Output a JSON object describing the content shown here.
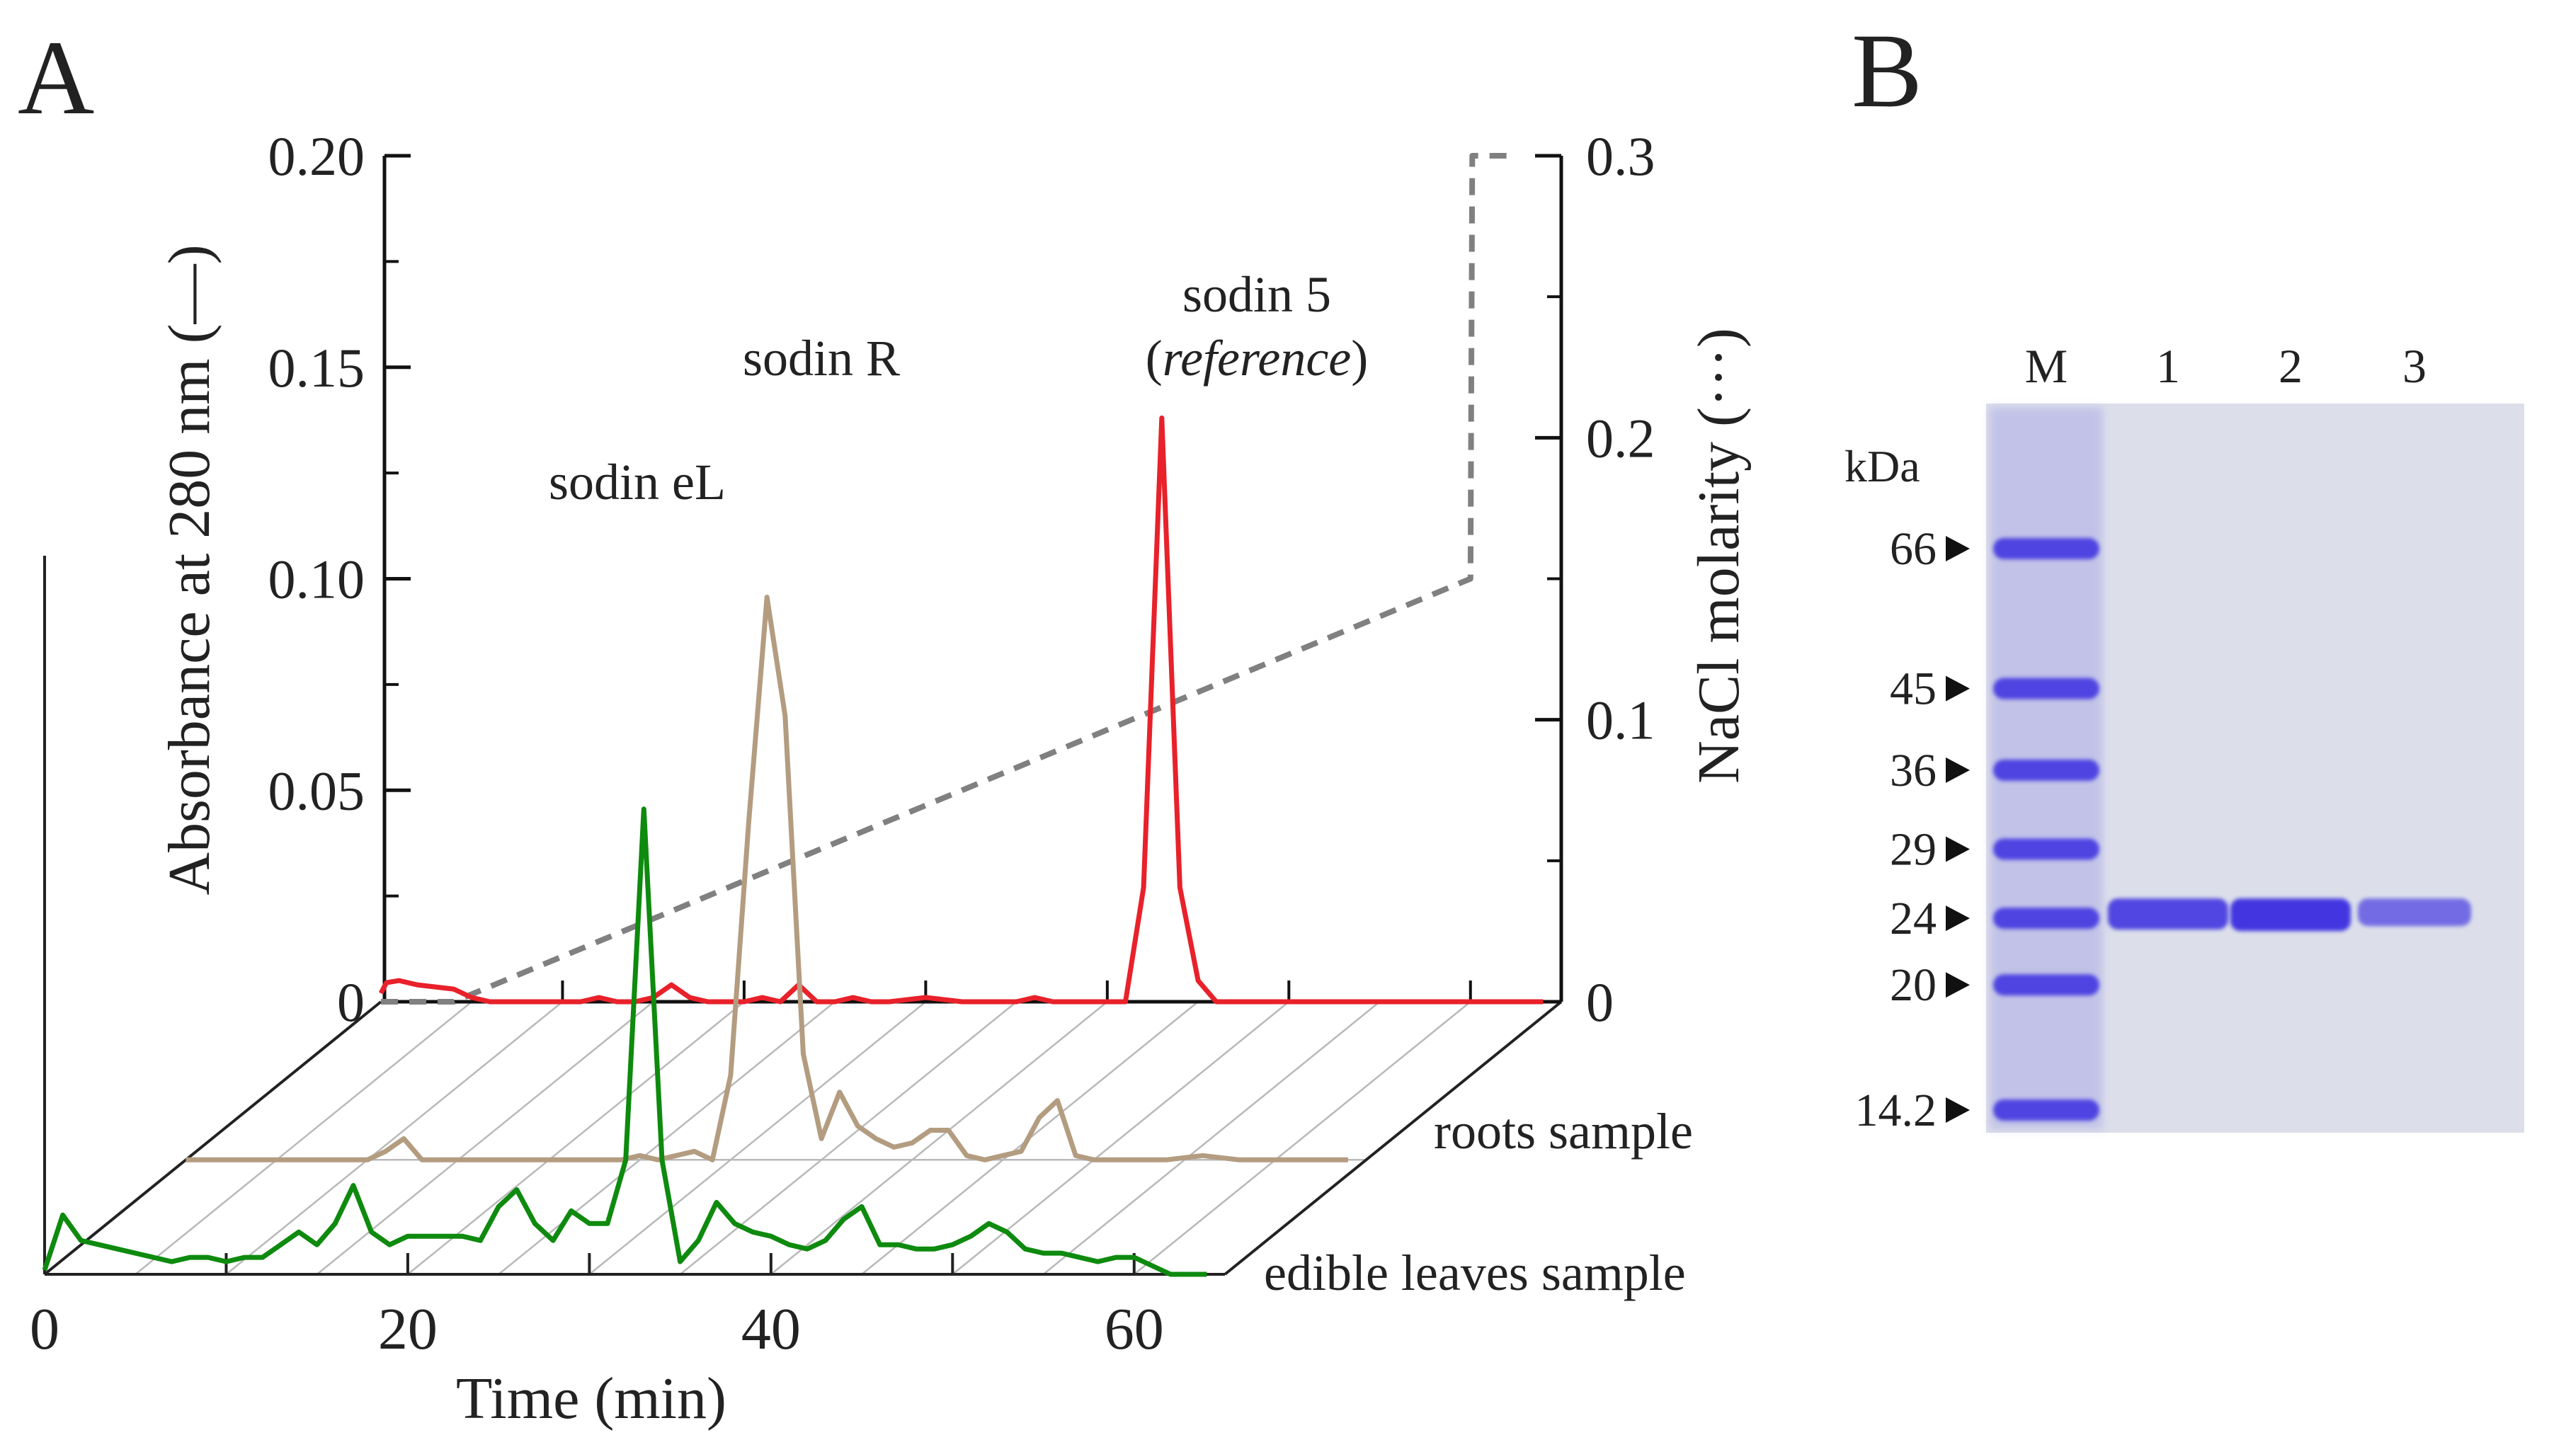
{
  "panels": {
    "a_label": "A",
    "b_label": "B"
  },
  "chart_data": {
    "type": "line",
    "title": "",
    "x_axis": {
      "label": "Time (min)",
      "ticks": [
        "0",
        "20",
        "40",
        "60"
      ],
      "range": [
        0,
        65
      ]
    },
    "y_left": {
      "label": "Absorbance at 280 nm (—)",
      "ticks": [
        "0",
        "0.05",
        "0.10",
        "0.15",
        "0.20"
      ],
      "range": [
        0,
        0.2
      ]
    },
    "y_right": {
      "label": "NaCl molarity (···)",
      "ticks": [
        "0",
        "0.1",
        "0.2",
        "0.3"
      ],
      "range": [
        0,
        0.3
      ]
    },
    "depth_labels": [
      "roots sample",
      "edible leaves sample"
    ],
    "peak_labels": {
      "leaves": "sodin eL",
      "roots": "sodin R",
      "reference_name": "sodin 5",
      "reference_open": "(",
      "reference_italic": "reference",
      "reference_close": ")"
    },
    "colors": {
      "reference": "#e8212a",
      "roots": "#b39c80",
      "leaves": "#0e8a0e",
      "gradient": "#808080"
    },
    "series": [
      {
        "name": "sodin 5 (reference)",
        "x": [
          0,
          0.3,
          1,
          2,
          3,
          4,
          5,
          6,
          8,
          10,
          11,
          12,
          13,
          14,
          15,
          16,
          17,
          18,
          19,
          20,
          21,
          22,
          23,
          24,
          25,
          26,
          27,
          28,
          30,
          32,
          34,
          35,
          36,
          37,
          38,
          39,
          40,
          41,
          42,
          43,
          44,
          45,
          46,
          48,
          50,
          52,
          54,
          56,
          58,
          60,
          62,
          64
        ],
        "values": [
          0.002,
          0.0045,
          0.005,
          0.004,
          0.0035,
          0.003,
          0.001,
          0,
          0,
          0,
          0,
          0.001,
          0,
          0,
          0.001,
          0.004,
          0.001,
          0,
          0,
          0,
          0.001,
          0,
          0.004,
          0,
          0,
          0.001,
          0,
          0,
          0.001,
          0,
          0,
          0,
          0.001,
          0,
          0,
          0,
          0,
          0,
          0.027,
          0.138,
          0.027,
          0.005,
          0,
          0,
          0,
          0,
          0,
          0,
          0,
          0,
          0,
          0
        ]
      },
      {
        "name": "roots sample",
        "x": [
          0,
          10,
          11,
          12,
          13,
          14,
          15,
          17,
          20,
          23,
          24,
          25,
          26,
          27,
          28,
          29,
          30,
          31,
          32,
          33,
          34,
          35,
          36,
          37,
          38,
          39,
          40,
          41,
          42,
          43,
          44,
          45,
          46,
          47,
          48,
          49,
          50,
          51,
          52,
          54,
          56,
          58,
          60,
          62,
          64
        ],
        "values": [
          0,
          0,
          0.002,
          0.005,
          0,
          0,
          0,
          0,
          0,
          0,
          0,
          0.001,
          0,
          0.001,
          0.002,
          0,
          0.02,
          0.08,
          0.133,
          0.105,
          0.025,
          0.005,
          0.016,
          0.008,
          0.005,
          0.003,
          0.004,
          0.007,
          0.007,
          0.001,
          0,
          0.001,
          0.002,
          0.01,
          0.014,
          0.001,
          0,
          0,
          0,
          0,
          0.001,
          0,
          0,
          0,
          0
        ]
      },
      {
        "name": "edible leaves sample",
        "x": [
          0,
          1,
          2,
          3,
          4,
          5,
          6,
          7,
          8,
          9,
          10,
          11,
          12,
          13,
          14,
          15,
          16,
          17,
          18,
          19,
          20,
          21,
          22,
          23,
          24,
          25,
          26,
          27,
          28,
          29,
          30,
          31,
          32,
          33,
          34,
          35,
          36,
          37,
          38,
          39,
          40,
          41,
          42,
          43,
          44,
          45,
          46,
          47,
          48,
          49,
          50,
          51,
          52,
          53,
          54,
          55,
          56,
          57,
          58,
          59,
          60,
          61,
          62,
          63,
          64
        ],
        "values": [
          0.001,
          0.014,
          0.008,
          0.007,
          0.006,
          0.005,
          0.004,
          0.003,
          0.004,
          0.004,
          0.003,
          0.004,
          0.004,
          0.007,
          0.01,
          0.007,
          0.012,
          0.021,
          0.01,
          0.007,
          0.009,
          0.009,
          0.009,
          0.009,
          0.008,
          0.016,
          0.02,
          0.012,
          0.008,
          0.015,
          0.012,
          0.012,
          0.027,
          0.11,
          0.027,
          0.003,
          0.008,
          0.017,
          0.012,
          0.01,
          0.009,
          0.007,
          0.006,
          0.008,
          0.013,
          0.016,
          0.007,
          0.007,
          0.006,
          0.006,
          0.007,
          0.009,
          0.012,
          0.01,
          0.006,
          0.005,
          0.005,
          0.004,
          0.003,
          0.004,
          0.004,
          0.002,
          0,
          0,
          0
        ]
      },
      {
        "name": "NaCl gradient",
        "axis": "right",
        "x": [
          0,
          4,
          60,
          60.1,
          62
        ],
        "values": [
          0,
          0,
          0.15,
          0.3,
          0.3
        ]
      }
    ]
  },
  "gel": {
    "unit_label": "kDa",
    "lane_labels": [
      "M",
      "1",
      "2",
      "3"
    ],
    "markers": [
      {
        "label": "66",
        "mw": 66
      },
      {
        "label": "45",
        "mw": 45
      },
      {
        "label": "36",
        "mw": 36
      },
      {
        "label": "29",
        "mw": 29
      },
      {
        "label": "24",
        "mw": 24
      },
      {
        "label": "20",
        "mw": 20
      },
      {
        "label": "14.2",
        "mw": 14.2
      }
    ],
    "sample_band_mw": 24,
    "sample_intensity": [
      0.85,
      1.0,
      0.5
    ],
    "colors": {
      "gel_bg": "#dcdfea",
      "band": "#3b2ee0"
    }
  }
}
